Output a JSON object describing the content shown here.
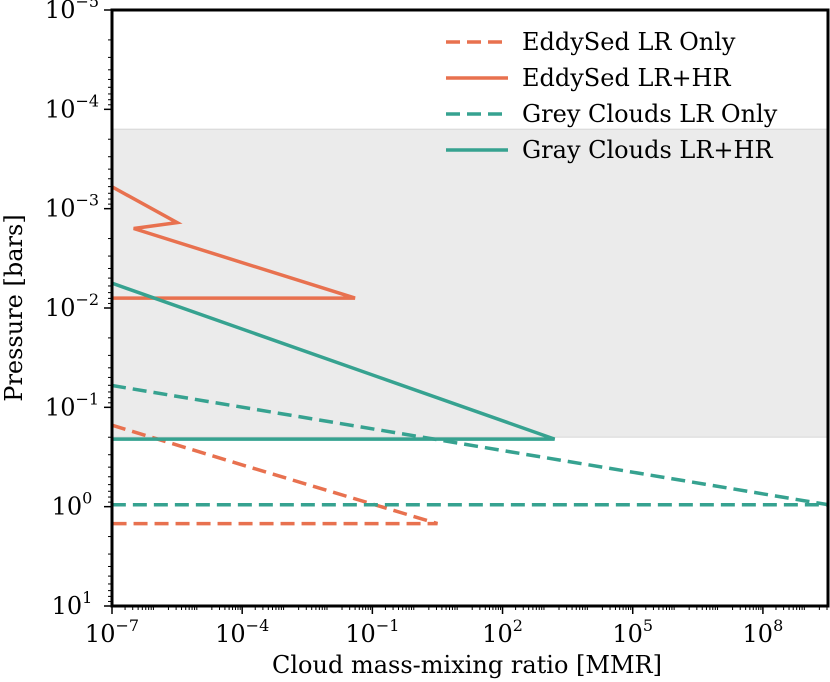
{
  "chart_data": {
    "type": "line",
    "title": "",
    "xlabel": "Cloud mass-mixing ratio [MMR]",
    "ylabel": "Pressure [bars]",
    "xscale": "log",
    "yscale": "log",
    "y_inverted": true,
    "xlim_log10": [
      -7,
      9.5
    ],
    "ylim_log10": [
      -5,
      1
    ],
    "grid": false,
    "legend_position": "top-right",
    "x_ticks": [
      {
        "base": "10",
        "exp": "−7",
        "log10": -7
      },
      {
        "base": "10",
        "exp": "−4",
        "log10": -4
      },
      {
        "base": "10",
        "exp": "−1",
        "log10": -1
      },
      {
        "base": "10",
        "exp": "2",
        "log10": 2
      },
      {
        "base": "10",
        "exp": "5",
        "log10": 5
      },
      {
        "base": "10",
        "exp": "8",
        "log10": 8
      }
    ],
    "y_ticks": [
      {
        "base": "10",
        "exp": "−5",
        "log10": -5
      },
      {
        "base": "10",
        "exp": "−4",
        "log10": -4
      },
      {
        "base": "10",
        "exp": "−3",
        "log10": -3
      },
      {
        "base": "10",
        "exp": "−2",
        "log10": -2
      },
      {
        "base": "10",
        "exp": "−1",
        "log10": -1
      },
      {
        "base": "10",
        "exp": "0",
        "log10": 0
      },
      {
        "base": "10",
        "exp": "1",
        "log10": 1
      }
    ],
    "shaded_band_pressure_log10": [
      -3.8,
      -0.7
    ],
    "series": [
      {
        "name": "EddySed LR Only",
        "color": "#e8714f",
        "dash": "dashed",
        "points_log10": [
          [
            -7,
            -0.82
          ],
          [
            -4,
            -0.42
          ],
          [
            0.5,
            0.17
          ],
          [
            -7,
            0.17
          ]
        ]
      },
      {
        "name": "EddySed LR+HR",
        "color": "#e8714f",
        "dash": "solid",
        "points_log10": [
          [
            -7,
            -3.22
          ],
          [
            -5.5,
            -2.86
          ],
          [
            -6.5,
            -2.8
          ],
          [
            -1.4,
            -2.1
          ],
          [
            -7,
            -2.1
          ]
        ]
      },
      {
        "name": "Grey Clouds LR Only",
        "color": "#36a290",
        "dash": "dashed",
        "points_log10": [
          [
            -7,
            -1.22
          ],
          [
            9.5,
            -0.02
          ],
          [
            -7,
            -0.02
          ]
        ]
      },
      {
        "name": "Gray Clouds LR+HR",
        "color": "#36a290",
        "dash": "solid",
        "points_log10": [
          [
            -7,
            -2.25
          ],
          [
            3.2,
            -0.68
          ],
          [
            -7,
            -0.68
          ]
        ]
      }
    ]
  }
}
